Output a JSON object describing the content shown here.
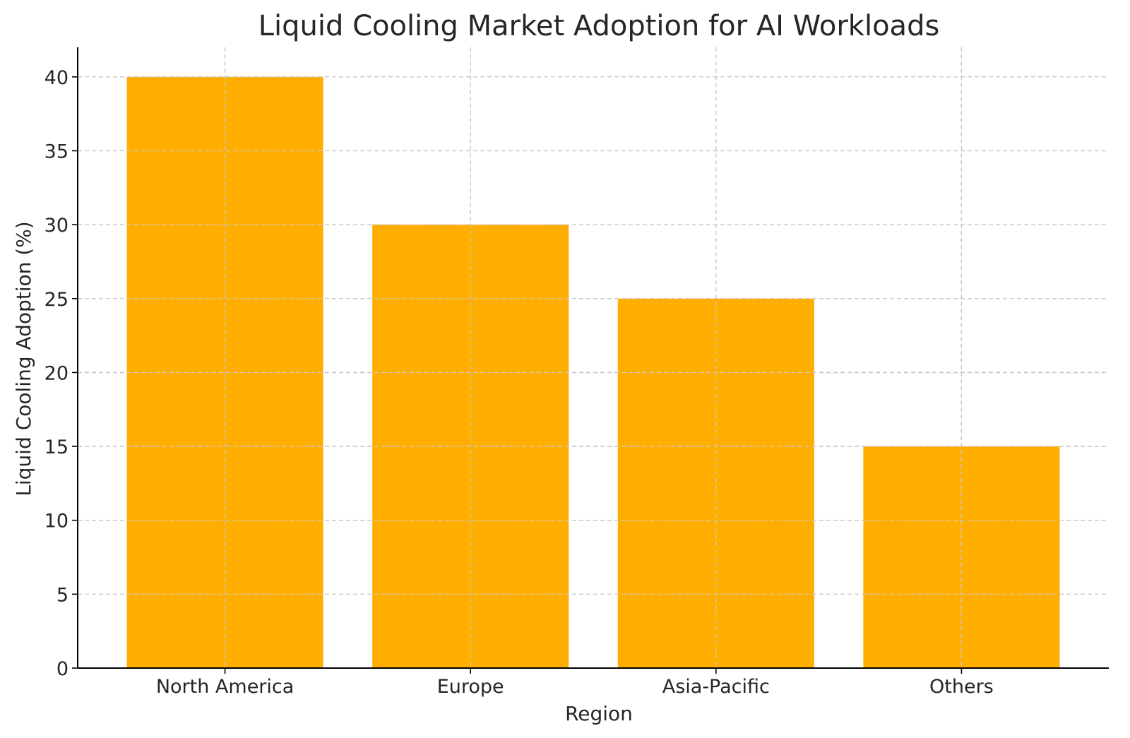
{
  "chart_data": {
    "type": "bar",
    "title": "Liquid Cooling Market Adoption for AI Workloads",
    "xlabel": "Region",
    "ylabel": "Liquid Cooling Adoption (%)",
    "categories": [
      "North America",
      "Europe",
      "Asia-Pacific",
      "Others"
    ],
    "values": [
      40,
      30,
      25,
      15
    ],
    "ylim": [
      0,
      42
    ],
    "yticks": [
      0,
      5,
      10,
      15,
      20,
      25,
      30,
      35,
      40
    ],
    "grid": true,
    "bar_color": "#FFAE00"
  }
}
